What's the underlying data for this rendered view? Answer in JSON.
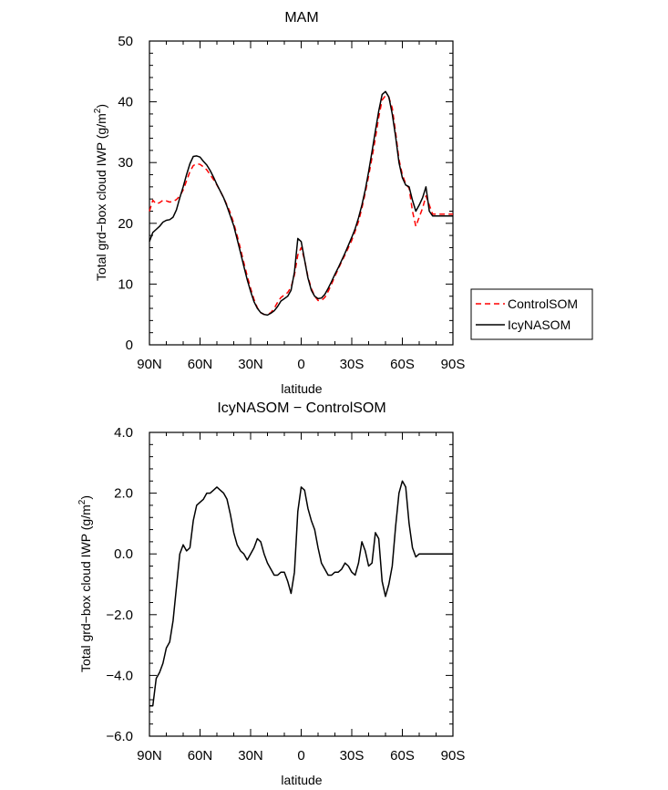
{
  "chart_data": [
    {
      "type": "line",
      "title": "MAM",
      "xlabel": "latitude",
      "ylabel": "Total grd−box cloud IWP (g/m²)",
      "xlim": [
        90,
        -90
      ],
      "ylim": [
        0,
        50
      ],
      "x_ticks": [
        90,
        60,
        30,
        0,
        -30,
        -60,
        -90
      ],
      "x_tick_labels": [
        "90N",
        "60N",
        "30N",
        "0",
        "30S",
        "60S",
        "90S"
      ],
      "y_ticks": [
        0,
        10,
        20,
        30,
        40,
        50
      ],
      "y_tick_labels": [
        "0",
        "10",
        "20",
        "30",
        "40",
        "50"
      ],
      "legend_position": "right",
      "series": [
        {
          "name": "ControlSOM",
          "color": "#ff0000",
          "dash": "dashed",
          "x": [
            90,
            88,
            86,
            84,
            82,
            80,
            78,
            76,
            74,
            72,
            70,
            68,
            66,
            64,
            62,
            60,
            58,
            56,
            54,
            52,
            50,
            48,
            46,
            44,
            42,
            40,
            38,
            36,
            34,
            32,
            30,
            28,
            26,
            24,
            22,
            20,
            18,
            16,
            14,
            12,
            10,
            8,
            6,
            4,
            2,
            0,
            -2,
            -4,
            -6,
            -8,
            -10,
            -12,
            -14,
            -16,
            -18,
            -20,
            -22,
            -24,
            -26,
            -28,
            -30,
            -32,
            -34,
            -36,
            -38,
            -40,
            -42,
            -44,
            -46,
            -48,
            -50,
            -52,
            -54,
            -56,
            -58,
            -60,
            -62,
            -64,
            -66,
            -68,
            -70,
            -72,
            -74,
            -76,
            -78,
            -80,
            -82,
            -84,
            -86,
            -88,
            -90
          ],
          "values": [
            22.0,
            23.8,
            23.2,
            23.4,
            23.8,
            23.7,
            23.5,
            23.6,
            23.9,
            24.5,
            25.5,
            27.0,
            28.5,
            29.5,
            29.8,
            29.7,
            29.3,
            28.8,
            28.0,
            27.2,
            26.3,
            25.3,
            24.2,
            23.0,
            21.7,
            20.0,
            18.0,
            15.8,
            13.5,
            11.3,
            9.3,
            7.5,
            6.1,
            5.3,
            5.0,
            5.0,
            5.3,
            6.0,
            7.0,
            7.8,
            8.2,
            8.6,
            9.5,
            11.5,
            14.8,
            16.0,
            14.0,
            11.2,
            9.3,
            8.0,
            7.3,
            7.3,
            7.8,
            8.8,
            10.0,
            11.3,
            12.5,
            13.7,
            14.8,
            16.0,
            17.2,
            18.7,
            20.3,
            22.5,
            25.0,
            27.8,
            30.8,
            34.0,
            37.5,
            40.3,
            41.0,
            40.7,
            39.0,
            35.0,
            30.5,
            28.0,
            26.5,
            25.8,
            22.0,
            19.5,
            21.0,
            22.5,
            24.5,
            23.0,
            21.5,
            21.5,
            21.5,
            21.5,
            21.5,
            21.5,
            21.5
          ]
        },
        {
          "name": "IcyNASOM",
          "color": "#000000",
          "dash": "solid",
          "x": [
            90,
            88,
            86,
            84,
            82,
            80,
            78,
            76,
            74,
            72,
            70,
            68,
            66,
            64,
            62,
            60,
            58,
            56,
            54,
            52,
            50,
            48,
            46,
            44,
            42,
            40,
            38,
            36,
            34,
            32,
            30,
            28,
            26,
            24,
            22,
            20,
            18,
            16,
            14,
            12,
            10,
            8,
            6,
            4,
            2,
            0,
            -2,
            -4,
            -6,
            -8,
            -10,
            -12,
            -14,
            -16,
            -18,
            -20,
            -22,
            -24,
            -26,
            -28,
            -30,
            -32,
            -34,
            -36,
            -38,
            -40,
            -42,
            -44,
            -46,
            -48,
            -50,
            -52,
            -54,
            -56,
            -58,
            -60,
            -62,
            -64,
            -66,
            -68,
            -70,
            -72,
            -74,
            -76,
            -78,
            -80,
            -82,
            -84,
            -86,
            -88,
            -90
          ],
          "values": [
            17.0,
            18.5,
            19.0,
            19.5,
            20.2,
            20.5,
            20.6,
            21.0,
            22.2,
            24.2,
            26.0,
            28.0,
            29.8,
            31.0,
            31.1,
            30.9,
            30.2,
            29.6,
            28.7,
            27.6,
            26.4,
            25.3,
            24.2,
            22.8,
            21.2,
            19.6,
            17.4,
            15.2,
            12.9,
            10.7,
            8.8,
            7.1,
            6.0,
            5.3,
            5.0,
            4.9,
            5.2,
            5.6,
            6.3,
            7.2,
            7.6,
            8.0,
            9.0,
            12.0,
            17.5,
            17.0,
            14.0,
            11.0,
            9.0,
            8.0,
            7.6,
            7.7,
            8.3,
            9.3,
            10.4,
            11.6,
            12.7,
            13.9,
            15.1,
            16.4,
            17.7,
            19.1,
            20.9,
            23.0,
            25.5,
            28.5,
            31.8,
            35.2,
            38.5,
            41.2,
            41.7,
            40.8,
            38.0,
            34.3,
            30.0,
            27.5,
            26.3,
            26.0,
            23.8,
            22.0,
            23.0,
            24.2,
            26.0,
            22.0,
            21.2,
            21.2,
            21.2,
            21.2,
            21.2,
            21.2,
            21.2
          ]
        }
      ]
    },
    {
      "type": "line",
      "title": "IcyNASOM − ControlSOM",
      "xlabel": "latitude",
      "ylabel": "Total grd−box cloud IWP (g/m²)",
      "xlim": [
        90,
        -90
      ],
      "ylim": [
        -6,
        4
      ],
      "x_ticks": [
        90,
        60,
        30,
        0,
        -30,
        -60,
        -90
      ],
      "x_tick_labels": [
        "90N",
        "60N",
        "30N",
        "0",
        "30S",
        "60S",
        "90S"
      ],
      "y_ticks": [
        -6,
        -4,
        -2,
        0,
        2,
        4
      ],
      "y_tick_labels": [
        "−6.0",
        "−4.0",
        "−2.0",
        "0.0",
        "2.0",
        "4.0"
      ],
      "series": [
        {
          "name": "",
          "color": "#000000",
          "dash": "solid",
          "x": [
            90,
            88,
            86,
            84,
            82,
            80,
            78,
            76,
            74,
            72,
            70,
            68,
            66,
            64,
            62,
            60,
            58,
            56,
            54,
            52,
            50,
            48,
            46,
            44,
            42,
            40,
            38,
            36,
            34,
            32,
            30,
            28,
            26,
            24,
            22,
            20,
            18,
            16,
            14,
            12,
            10,
            8,
            6,
            4,
            2,
            0,
            -2,
            -4,
            -6,
            -8,
            -10,
            -12,
            -14,
            -16,
            -18,
            -20,
            -22,
            -24,
            -26,
            -28,
            -30,
            -32,
            -34,
            -36,
            -38,
            -40,
            -42,
            -44,
            -46,
            -48,
            -50,
            -52,
            -54,
            -56,
            -58,
            -60,
            -62,
            -64,
            -66,
            -68,
            -70,
            -72,
            -74,
            -76,
            -78,
            -80,
            -82,
            -84,
            -86,
            -88,
            -90
          ],
          "values": [
            -5.0,
            -5.0,
            -4.1,
            -3.9,
            -3.6,
            -3.1,
            -2.9,
            -2.2,
            -1.1,
            0.0,
            0.3,
            0.1,
            0.2,
            1.1,
            1.6,
            1.7,
            1.8,
            2.0,
            2.0,
            2.1,
            2.2,
            2.1,
            2.0,
            1.8,
            1.3,
            0.7,
            0.3,
            0.1,
            0.0,
            -0.2,
            0.0,
            0.2,
            0.5,
            0.4,
            0.0,
            -0.3,
            -0.5,
            -0.7,
            -0.7,
            -0.6,
            -0.6,
            -0.9,
            -1.3,
            -0.6,
            1.4,
            2.2,
            2.1,
            1.5,
            1.1,
            0.8,
            0.2,
            -0.3,
            -0.5,
            -0.7,
            -0.7,
            -0.6,
            -0.6,
            -0.5,
            -0.3,
            -0.4,
            -0.6,
            -0.7,
            -0.3,
            0.4,
            0.1,
            -0.4,
            -0.3,
            0.7,
            0.5,
            -0.9,
            -1.4,
            -1.0,
            -0.4,
            0.9,
            2.0,
            2.4,
            2.2,
            1.0,
            0.2,
            -0.1,
            0.0,
            0.0,
            0.0,
            0.0,
            0.0,
            0.0,
            0.0,
            0.0,
            0.0,
            0.0,
            0.0
          ]
        }
      ]
    }
  ]
}
